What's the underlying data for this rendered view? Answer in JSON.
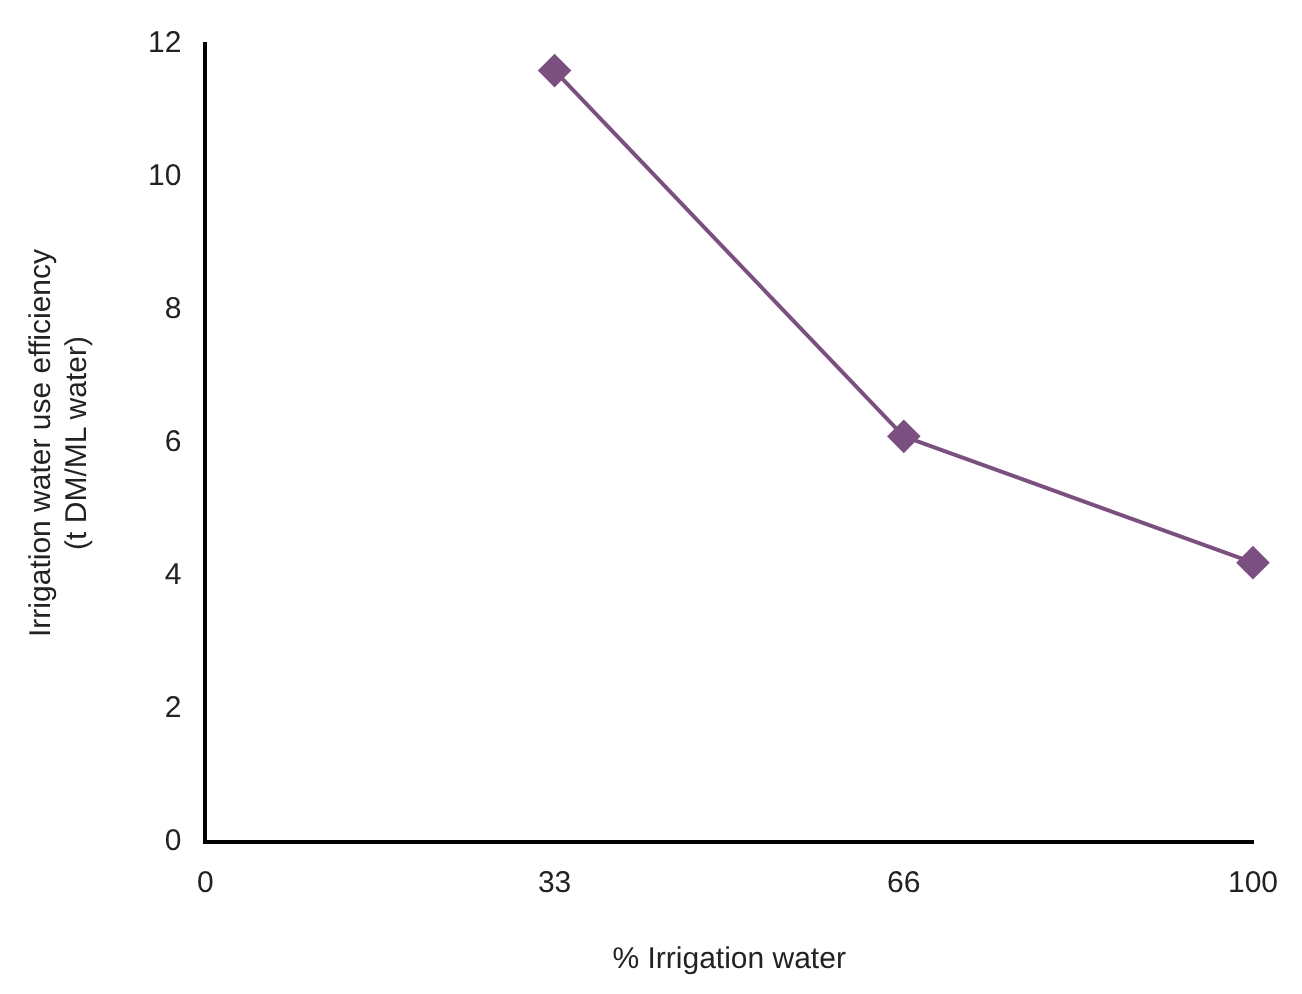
{
  "chart_data": {
    "type": "line",
    "xlabel": "% Irrigation water",
    "ylabel": "Irrigation water use efficiency\n(t DM/ML water)",
    "categories": [
      "0",
      "33",
      "66",
      "100"
    ],
    "series": [
      {
        "color": "#7b4f7f",
        "values": [
          null,
          11.6,
          6.1,
          4.2
        ]
      }
    ],
    "ylim": [
      0,
      12
    ],
    "yticks": [
      0,
      2,
      4,
      6,
      8,
      10,
      12
    ],
    "grid": false,
    "legend": false,
    "marker": "diamond",
    "line_style": "solid"
  }
}
